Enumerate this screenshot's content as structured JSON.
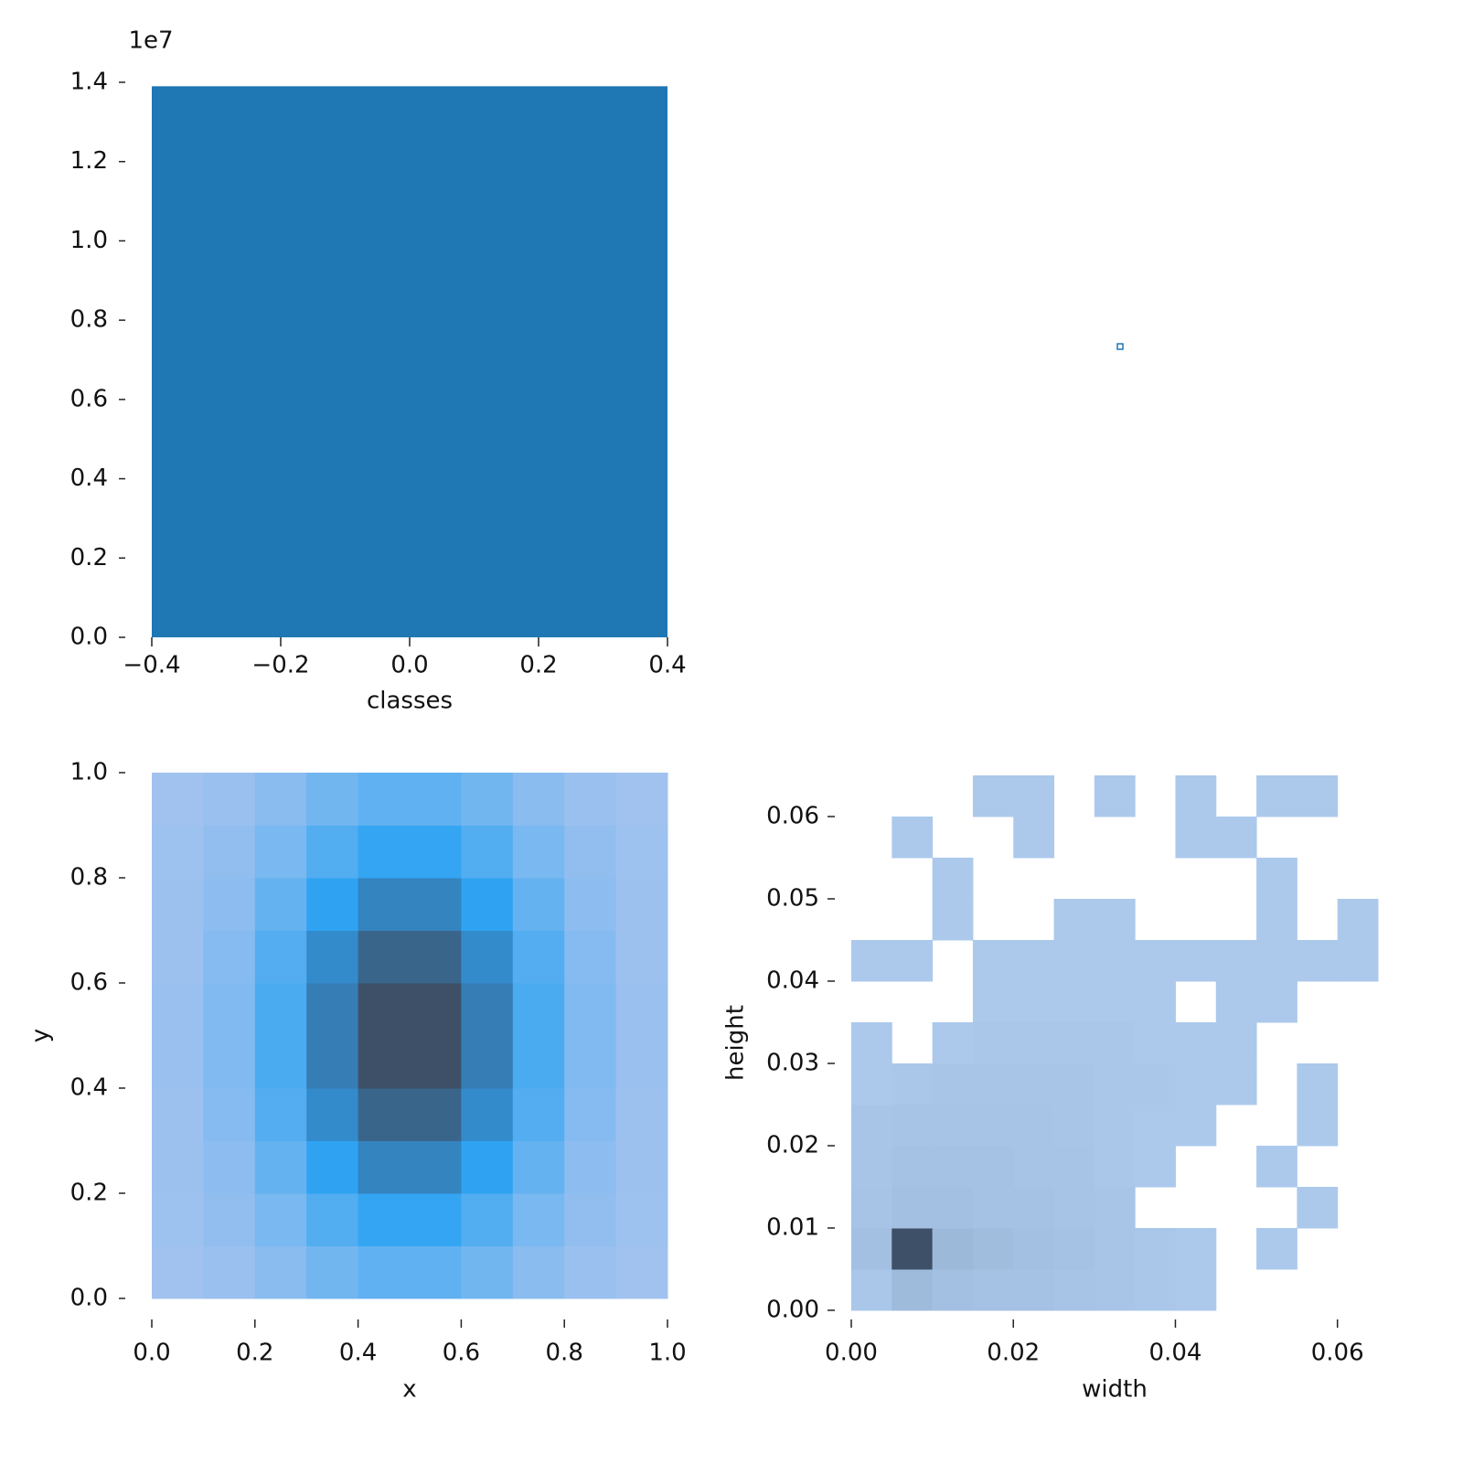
{
  "chart_data": [
    {
      "type": "histogram",
      "xlabel": "classes",
      "yoffset_label": "1e7",
      "color": "#1f77b4",
      "bins": [
        -0.4,
        0.4
      ],
      "values": [
        13900000
      ],
      "xlim": [
        -0.4,
        0.4
      ],
      "ylim": [
        0,
        14000000
      ],
      "xticks": [
        {
          "value": -0.4,
          "label": "−0.4"
        },
        {
          "value": -0.2,
          "label": "−0.2"
        },
        {
          "value": 0,
          "label": "0.0"
        },
        0.2,
        0.4
      ],
      "yticks": [
        {
          "value": 0,
          "label": "0.0"
        },
        {
          "value": 2000000,
          "label": "0.2"
        },
        {
          "value": 4000000,
          "label": "0.4"
        },
        {
          "value": 6000000,
          "label": "0.6"
        },
        {
          "value": 8000000,
          "label": "0.8"
        },
        {
          "value": 10000000,
          "label": "1.0"
        },
        {
          "value": 12000000,
          "label": "1.2"
        },
        {
          "value": 14000000,
          "label": "1.4"
        }
      ]
    },
    {
      "type": "hist2d",
      "xlabel": "x",
      "ylabel": "y",
      "cmap": [
        "#a3c3ef",
        "#2ea3f2",
        "#3e5068"
      ],
      "xbins": [
        0,
        0.1,
        0.2,
        0.3,
        0.4,
        0.5,
        0.6,
        0.7,
        0.8,
        0.9,
        1.0
      ],
      "ybins": [
        0,
        0.1,
        0.2,
        0.3,
        0.4,
        0.5,
        0.6,
        0.7,
        0.8,
        0.9,
        1.0
      ],
      "values": [
        [
          1,
          4,
          10,
          20,
          27,
          27,
          20,
          10,
          4,
          1
        ],
        [
          2,
          7,
          17,
          33,
          45,
          45,
          33,
          17,
          7,
          2
        ],
        [
          3,
          9,
          25,
          47,
          65,
          65,
          47,
          25,
          9,
          3
        ],
        [
          3,
          12,
          32,
          61,
          83,
          83,
          61,
          32,
          12,
          3
        ],
        [
          4,
          14,
          36,
          69,
          95,
          95,
          69,
          36,
          14,
          4
        ],
        [
          4,
          14,
          36,
          69,
          95,
          95,
          69,
          36,
          14,
          4
        ],
        [
          3,
          12,
          32,
          61,
          83,
          83,
          61,
          32,
          12,
          3
        ],
        [
          3,
          9,
          25,
          47,
          65,
          65,
          47,
          25,
          9,
          3
        ],
        [
          2,
          7,
          17,
          33,
          45,
          45,
          33,
          17,
          7,
          2
        ],
        [
          1,
          4,
          10,
          20,
          27,
          27,
          20,
          10,
          4,
          1
        ]
      ],
      "xlim": [
        0,
        1.0
      ],
      "ylim": [
        0,
        1.0
      ],
      "xticks": [
        {
          "value": 0,
          "label": "0.0"
        },
        0.2,
        0.4,
        0.6,
        0.8,
        {
          "value": 1,
          "label": "1.0"
        }
      ],
      "yticks": [
        {
          "value": 0,
          "label": "0.0"
        },
        0.2,
        0.4,
        0.6,
        0.8,
        {
          "value": 1,
          "label": "1.0"
        }
      ]
    },
    {
      "type": "hist2d",
      "xlabel": "width",
      "ylabel": "height",
      "cmap": [
        "#aecbee",
        "#3e5068"
      ],
      "xbins": [
        0,
        0.005,
        0.01,
        0.015,
        0.02,
        0.025,
        0.03,
        0.035,
        0.04,
        0.045,
        0.05,
        0.055,
        0.06,
        0.065
      ],
      "ybins": [
        0,
        0.005,
        0.01,
        0.015,
        0.02,
        0.025,
        0.03,
        0.035,
        0.04,
        0.045,
        0.05,
        0.055,
        0.06,
        0.065
      ],
      "values": [
        [
          2,
          8,
          6,
          5,
          5,
          4,
          3,
          2,
          1,
          0,
          0,
          0,
          0
        ],
        [
          6,
          60,
          9,
          7,
          6,
          5,
          3,
          2,
          1,
          0,
          1,
          0,
          0
        ],
        [
          4,
          6,
          6,
          5,
          5,
          4,
          3,
          0,
          0,
          0,
          0,
          1,
          0
        ],
        [
          3,
          5,
          5,
          5,
          4,
          4,
          2,
          1,
          0,
          0,
          1,
          0,
          0
        ],
        [
          3,
          4,
          4,
          4,
          4,
          3,
          2,
          1,
          1,
          0,
          0,
          1,
          0
        ],
        [
          1,
          2,
          3,
          3,
          3,
          3,
          2,
          2,
          1,
          1,
          0,
          1,
          0
        ],
        [
          1,
          0,
          1,
          2,
          2,
          2,
          2,
          1,
          1,
          1,
          0,
          0,
          0
        ],
        [
          0,
          0,
          0,
          1,
          1,
          1,
          1,
          1,
          0,
          1,
          1,
          0,
          0
        ],
        [
          1,
          1,
          0,
          1,
          1,
          1,
          1,
          1,
          1,
          1,
          1,
          1,
          1
        ],
        [
          0,
          0,
          1,
          0,
          0,
          1,
          1,
          0,
          0,
          0,
          1,
          0,
          1
        ],
        [
          0,
          0,
          1,
          0,
          0,
          0,
          0,
          0,
          0,
          0,
          1,
          0,
          0
        ],
        [
          0,
          1,
          0,
          0,
          1,
          0,
          0,
          0,
          1,
          1,
          0,
          0,
          0
        ],
        [
          0,
          0,
          0,
          1,
          1,
          0,
          1,
          0,
          1,
          0,
          1,
          1,
          0
        ]
      ],
      "xlim": [
        0,
        0.065
      ],
      "ylim": [
        0,
        0.065
      ],
      "xticks": [
        {
          "value": 0,
          "label": "0.00"
        },
        {
          "value": 0.02,
          "label": "0.02"
        },
        {
          "value": 0.04,
          "label": "0.04"
        },
        {
          "value": 0.06,
          "label": "0.06"
        }
      ],
      "yticks": [
        {
          "value": 0,
          "label": "0.00"
        },
        {
          "value": 0.01,
          "label": "0.01"
        },
        {
          "value": 0.02,
          "label": "0.02"
        },
        {
          "value": 0.03,
          "label": "0.03"
        },
        {
          "value": 0.04,
          "label": "0.04"
        },
        {
          "value": 0.05,
          "label": "0.05"
        },
        {
          "value": 0.06,
          "label": "0.06"
        }
      ]
    }
  ]
}
